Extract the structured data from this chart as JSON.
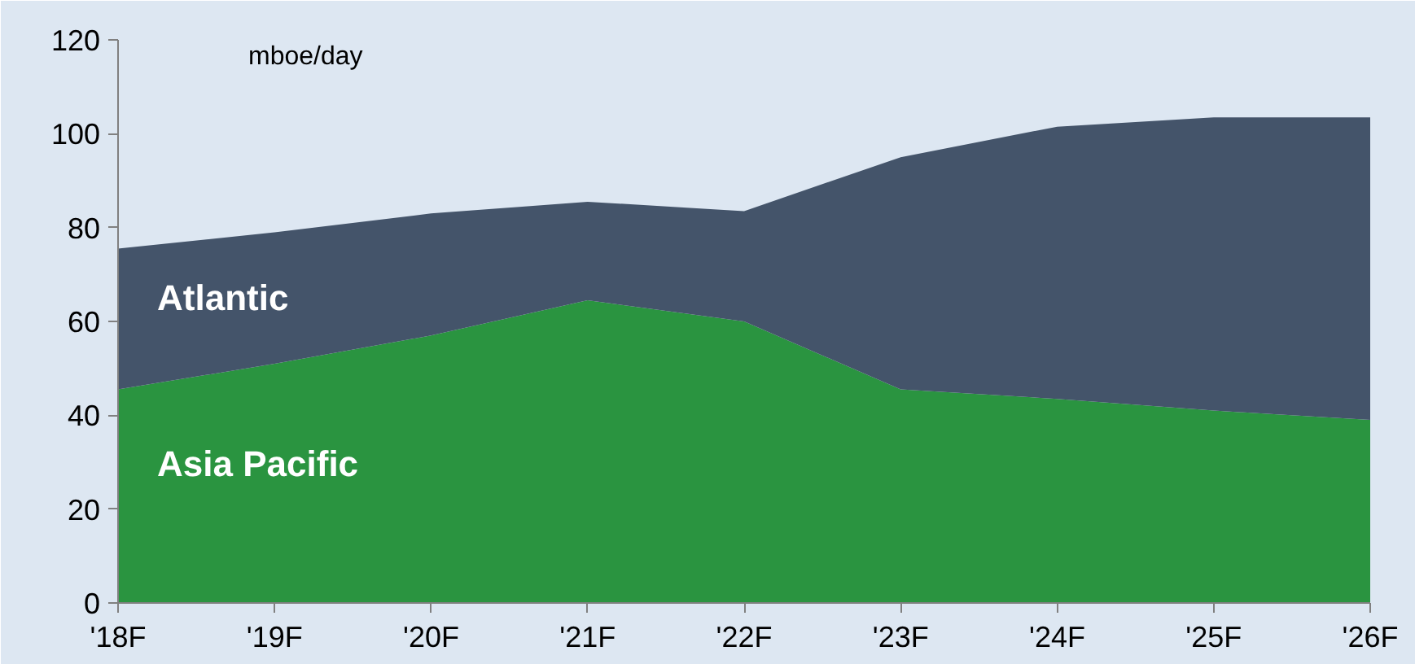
{
  "chart_data": {
    "type": "area",
    "stacked": true,
    "ylabel": "mboe/day",
    "categories": [
      "'18F",
      "'19F",
      "'20F",
      "'21F",
      "'22F",
      "'23F",
      "'24F",
      "'25F",
      "'26F"
    ],
    "series": [
      {
        "name": "Asia Pacific",
        "color": "#2a9440",
        "values": [
          45.5,
          51,
          57,
          64.5,
          60,
          45.5,
          43.5,
          41,
          39
        ]
      },
      {
        "name": "Atlantic",
        "color": "#44546a",
        "values": [
          30,
          28,
          26,
          21,
          23.5,
          49.5,
          58,
          62.5,
          64.5
        ]
      }
    ],
    "ylim": [
      0,
      120
    ],
    "yticks": [
      0,
      20,
      40,
      60,
      80,
      100,
      120
    ],
    "grid": false
  }
}
